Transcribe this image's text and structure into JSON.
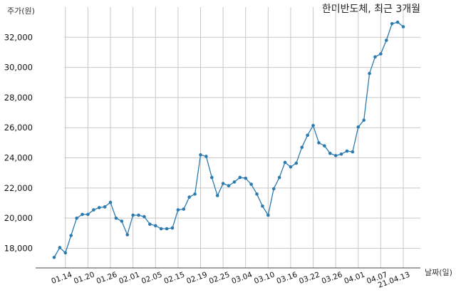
{
  "chart_data": {
    "type": "line",
    "title": "한미반도체, 최근 3개월",
    "ylabel": "주가(원)",
    "xlabel": "날짜(일)",
    "ylim": [
      16700,
      34000
    ],
    "yticks": [
      18000,
      20000,
      22000,
      24000,
      26000,
      28000,
      30000,
      32000
    ],
    "ytick_labels": [
      "18,000",
      "20,000",
      "22,000",
      "24,000",
      "26,000",
      "28,000",
      "30,000",
      "32,000"
    ],
    "xticks": [
      {
        "label": "01.14",
        "index": 2
      },
      {
        "label": "01.20",
        "index": 6
      },
      {
        "label": "01.26",
        "index": 10
      },
      {
        "label": "02.01",
        "index": 14
      },
      {
        "label": "02.05",
        "index": 18
      },
      {
        "label": "02.15",
        "index": 22
      },
      {
        "label": "02.19",
        "index": 26
      },
      {
        "label": "02.25",
        "index": 30
      },
      {
        "label": "03.04",
        "index": 34
      },
      {
        "label": "03.10",
        "index": 38
      },
      {
        "label": "03.16",
        "index": 42
      },
      {
        "label": "03.22",
        "index": 46
      },
      {
        "label": "03.26",
        "index": 50
      },
      {
        "label": "04.01",
        "index": 54
      },
      {
        "label": "04.07",
        "index": 58
      },
      {
        "label": "21.04.13",
        "index": 62
      }
    ],
    "grid": true,
    "series": [
      {
        "color": "#2b7bb0",
        "values": [
          17400,
          18050,
          17700,
          18850,
          20000,
          20250,
          20250,
          20550,
          20700,
          20750,
          21050,
          20000,
          19800,
          18900,
          20200,
          20200,
          20100,
          19600,
          19500,
          19300,
          19300,
          19350,
          20550,
          20600,
          21400,
          21600,
          24200,
          24100,
          22700,
          21500,
          22300,
          22150,
          22400,
          22700,
          22650,
          22250,
          21600,
          20800,
          20200,
          21950,
          22700,
          23700,
          23400,
          23650,
          24700,
          25500,
          26150,
          25000,
          24800,
          24300,
          24150,
          24250,
          24450,
          24400,
          26050,
          26500,
          29600,
          30700,
          30900,
          31800,
          32900,
          33000,
          32700
        ]
      }
    ]
  }
}
